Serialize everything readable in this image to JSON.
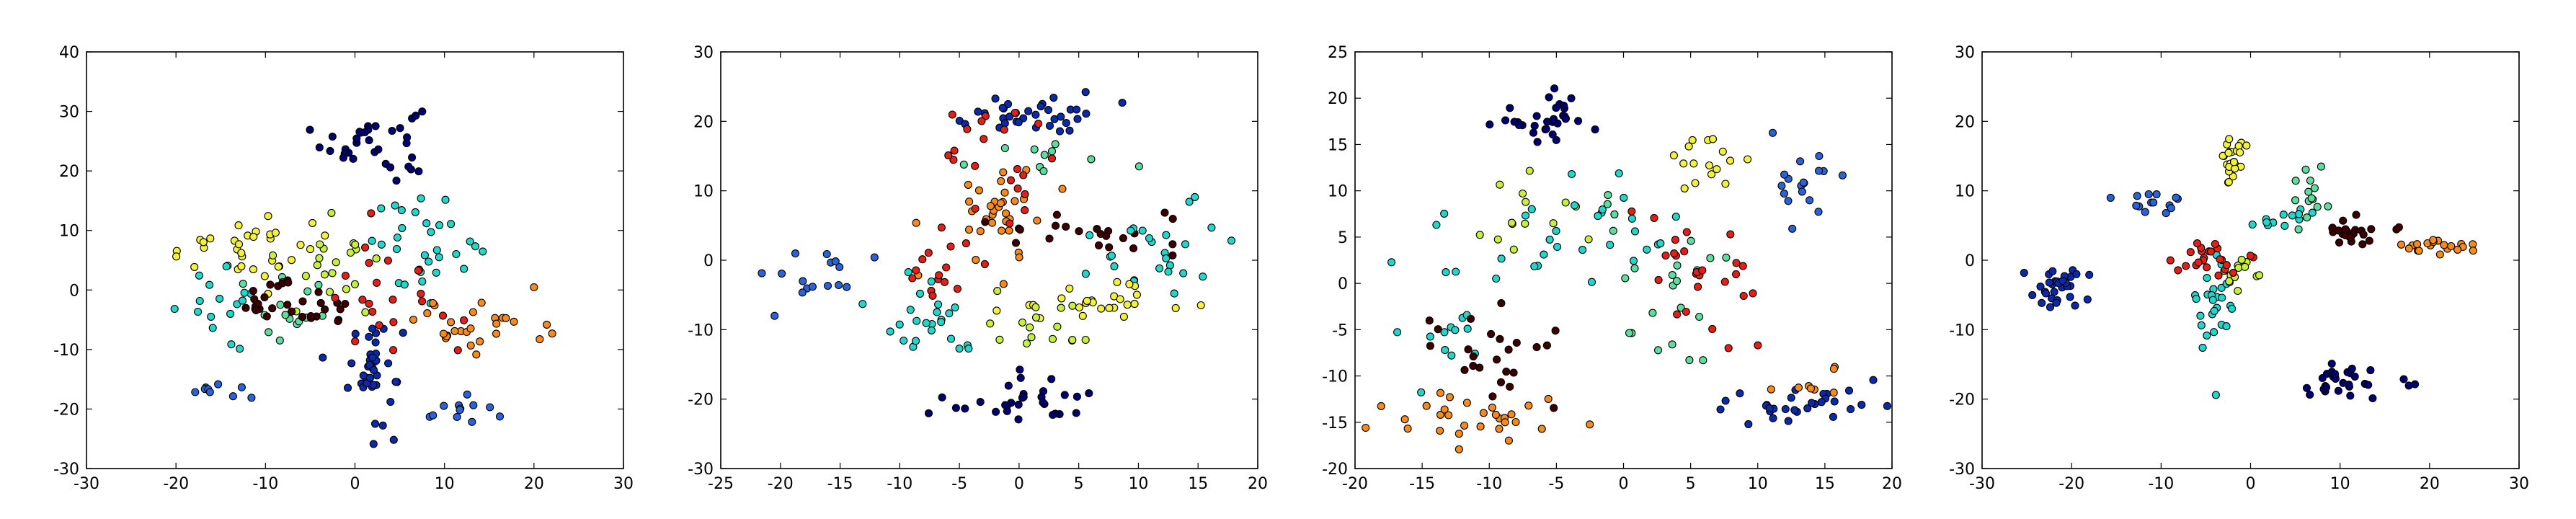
{
  "chart_data": [
    {
      "type": "scatter",
      "title": "",
      "xlabel": "",
      "ylabel": "",
      "xlim": [
        -30,
        30
      ],
      "ylim": [
        -30,
        40
      ],
      "xticks": [
        "-30",
        "-20",
        "-10",
        "0",
        "10",
        "20",
        "30"
      ],
      "yticks": [
        "-30",
        "-20",
        "-10",
        "0",
        "10",
        "20",
        "30",
        "40"
      ],
      "grid": false,
      "legend": "none",
      "clusters": [
        {
          "color": "#00006e",
          "cx": 2,
          "cy": 25,
          "sx": 2.8,
          "sy": 3.2,
          "n": 34
        },
        {
          "color": "#0a2aa8",
          "cx": 2,
          "cy": -13,
          "sx": 1.6,
          "sy": 4.5,
          "n": 40
        },
        {
          "color": "#2a63d6",
          "cx": -15,
          "cy": -16.5,
          "sx": 1.4,
          "sy": 1,
          "n": 9
        },
        {
          "color": "#2a63d6",
          "cx": 11,
          "cy": -20,
          "sx": 2,
          "sy": 1.5,
          "n": 12
        },
        {
          "color": "#f2f23a",
          "cx": -12,
          "cy": 7,
          "sx": 5,
          "sy": 2.5,
          "n": 34
        },
        {
          "color": "#c8ef3e",
          "cx": -3,
          "cy": 4,
          "sx": 3,
          "sy": 4,
          "n": 20
        },
        {
          "color": "#23d6cc",
          "cx": 8,
          "cy": 8,
          "sx": 3,
          "sy": 4,
          "n": 30
        },
        {
          "color": "#23d6cc",
          "cx": -14,
          "cy": -3,
          "sx": 3,
          "sy": 3,
          "n": 16
        },
        {
          "color": "#5dde9e",
          "cx": -7,
          "cy": -5,
          "sx": 3,
          "sy": 4,
          "n": 16
        },
        {
          "color": "#3c0000",
          "cx": -10,
          "cy": -1,
          "sx": 2,
          "sy": 1.5,
          "n": 16
        },
        {
          "color": "#3c0000",
          "cx": -4,
          "cy": -3.5,
          "sx": 1.8,
          "sy": 1.5,
          "n": 14
        },
        {
          "color": "#e32017",
          "cx": 4,
          "cy": -2,
          "sx": 4,
          "sy": 5,
          "n": 22
        },
        {
          "color": "#f78a1c",
          "cx": 14,
          "cy": -6,
          "sx": 3.5,
          "sy": 3,
          "n": 28
        }
      ]
    },
    {
      "type": "scatter",
      "title": "",
      "xlabel": "",
      "ylabel": "",
      "xlim": [
        -25,
        20
      ],
      "ylim": [
        -30,
        30
      ],
      "xticks": [
        "-25",
        "-20",
        "-15",
        "-10",
        "-5",
        "0",
        "5",
        "10",
        "15",
        "20"
      ],
      "yticks": [
        "-30",
        "-20",
        "-10",
        "0",
        "10",
        "20",
        "30"
      ],
      "grid": false,
      "legend": "none",
      "clusters": [
        {
          "color": "#0a2aa8",
          "cx": 1,
          "cy": 21,
          "sx": 3,
          "sy": 1.5,
          "n": 35
        },
        {
          "color": "#2a63d6",
          "cx": -16,
          "cy": -2,
          "sx": 2.5,
          "sy": 2,
          "n": 16
        },
        {
          "color": "#00006e",
          "cx": 0,
          "cy": -20,
          "sx": 3,
          "sy": 2,
          "n": 30
        },
        {
          "color": "#f78a1c",
          "cx": -2,
          "cy": 7,
          "sx": 2,
          "sy": 4,
          "n": 34
        },
        {
          "color": "#e32017",
          "cx": -2,
          "cy": 12,
          "sx": 3,
          "sy": 6,
          "n": 24
        },
        {
          "color": "#3c0000",
          "cx": 6,
          "cy": 4,
          "sx": 4,
          "sy": 2,
          "n": 22
        },
        {
          "color": "#23d6cc",
          "cx": 11,
          "cy": 1,
          "sx": 3,
          "sy": 3,
          "n": 26
        },
        {
          "color": "#23d6cc",
          "cx": -8,
          "cy": -8,
          "sx": 2.5,
          "sy": 3,
          "n": 24
        },
        {
          "color": "#f2f23a",
          "cx": 7,
          "cy": -6,
          "sx": 4,
          "sy": 1.5,
          "n": 26
        },
        {
          "color": "#c8ef3e",
          "cx": 1,
          "cy": -9,
          "sx": 3,
          "sy": 3,
          "n": 16
        },
        {
          "color": "#5dde9e",
          "cx": 2,
          "cy": 14,
          "sx": 3,
          "sy": 2,
          "n": 10
        },
        {
          "color": "#e32017",
          "cx": -7,
          "cy": -2,
          "sx": 3,
          "sy": 2,
          "n": 12
        }
      ]
    },
    {
      "type": "scatter",
      "title": "",
      "xlabel": "",
      "ylabel": "",
      "xlim": [
        -20,
        20
      ],
      "ylim": [
        -20,
        25
      ],
      "xticks": [
        "-20",
        "-15",
        "-10",
        "-5",
        "0",
        "5",
        "10",
        "15",
        "20"
      ],
      "yticks": [
        "-20",
        "-15",
        "-10",
        "-5",
        "0",
        "5",
        "10",
        "15",
        "20",
        "25"
      ],
      "grid": false,
      "legend": "none",
      "clusters": [
        {
          "color": "#00006e",
          "cx": -5,
          "cy": 18,
          "sx": 2.5,
          "sy": 1.5,
          "n": 32
        },
        {
          "color": "#0a2aa8",
          "cx": 13,
          "cy": -13,
          "sx": 3,
          "sy": 1,
          "n": 30
        },
        {
          "color": "#2a63d6",
          "cx": 13,
          "cy": 11,
          "sx": 1.5,
          "sy": 3,
          "n": 18
        },
        {
          "color": "#f2f23a",
          "cx": 6,
          "cy": 12,
          "sx": 2,
          "sy": 2,
          "n": 16
        },
        {
          "color": "#c8ef3e",
          "cx": -7,
          "cy": 7,
          "sx": 2,
          "sy": 3,
          "n": 14
        },
        {
          "color": "#23d6cc",
          "cx": -2,
          "cy": 5,
          "sx": 3,
          "sy": 4,
          "n": 26
        },
        {
          "color": "#23d6cc",
          "cx": -13,
          "cy": -3,
          "sx": 2,
          "sy": 4,
          "n": 18
        },
        {
          "color": "#5dde9e",
          "cx": 3,
          "cy": 0,
          "sx": 3,
          "sy": 5,
          "n": 24
        },
        {
          "color": "#3c0000",
          "cx": -10,
          "cy": -8,
          "sx": 2.5,
          "sy": 3,
          "n": 24
        },
        {
          "color": "#e32017",
          "cx": 5,
          "cy": 0,
          "sx": 3,
          "sy": 4,
          "n": 26
        },
        {
          "color": "#f78a1c",
          "cx": -10,
          "cy": -14.5,
          "sx": 3.5,
          "sy": 1.5,
          "n": 30
        },
        {
          "color": "#f78a1c",
          "cx": 14,
          "cy": -11,
          "sx": 2,
          "sy": 1,
          "n": 8
        }
      ]
    },
    {
      "type": "scatter",
      "title": "",
      "xlabel": "",
      "ylabel": "",
      "xlim": [
        -30,
        30
      ],
      "ylim": [
        -30,
        30
      ],
      "xticks": [
        "-30",
        "-20",
        "-10",
        "0",
        "10",
        "20",
        "30"
      ],
      "yticks": [
        "-30",
        "-20",
        "-10",
        "0",
        "10",
        "20",
        "30"
      ],
      "grid": false,
      "legend": "none",
      "clusters": [
        {
          "color": "#0a2aa8",
          "cx": -22,
          "cy": -4,
          "sx": 2,
          "sy": 1.5,
          "n": 32
        },
        {
          "color": "#00006e",
          "cx": 10,
          "cy": -18,
          "sx": 3,
          "sy": 1.5,
          "n": 30
        },
        {
          "color": "#2a63d6",
          "cx": -11,
          "cy": 8,
          "sx": 2,
          "sy": 1,
          "n": 14
        },
        {
          "color": "#f2f23a",
          "cx": -2,
          "cy": 15,
          "sx": 0.6,
          "sy": 2,
          "n": 24
        },
        {
          "color": "#23d6cc",
          "cx": -4,
          "cy": -6,
          "sx": 1.2,
          "sy": 4,
          "n": 26
        },
        {
          "color": "#5dde9e",
          "cx": 7,
          "cy": 9,
          "sx": 1,
          "sy": 2,
          "n": 14
        },
        {
          "color": "#c8ef3e",
          "cx": -1,
          "cy": -2,
          "sx": 1,
          "sy": 2,
          "n": 14
        },
        {
          "color": "#e32017",
          "cx": -5,
          "cy": 0,
          "sx": 2,
          "sy": 1,
          "n": 24
        },
        {
          "color": "#3c0000",
          "cx": 12,
          "cy": 4,
          "sx": 2,
          "sy": 1,
          "n": 24
        },
        {
          "color": "#f78a1c",
          "cx": 20,
          "cy": 2,
          "sx": 2,
          "sy": 0.5,
          "n": 20
        },
        {
          "color": "#23d6cc",
          "cx": 4,
          "cy": 6,
          "sx": 2,
          "sy": 1,
          "n": 12
        }
      ]
    }
  ]
}
